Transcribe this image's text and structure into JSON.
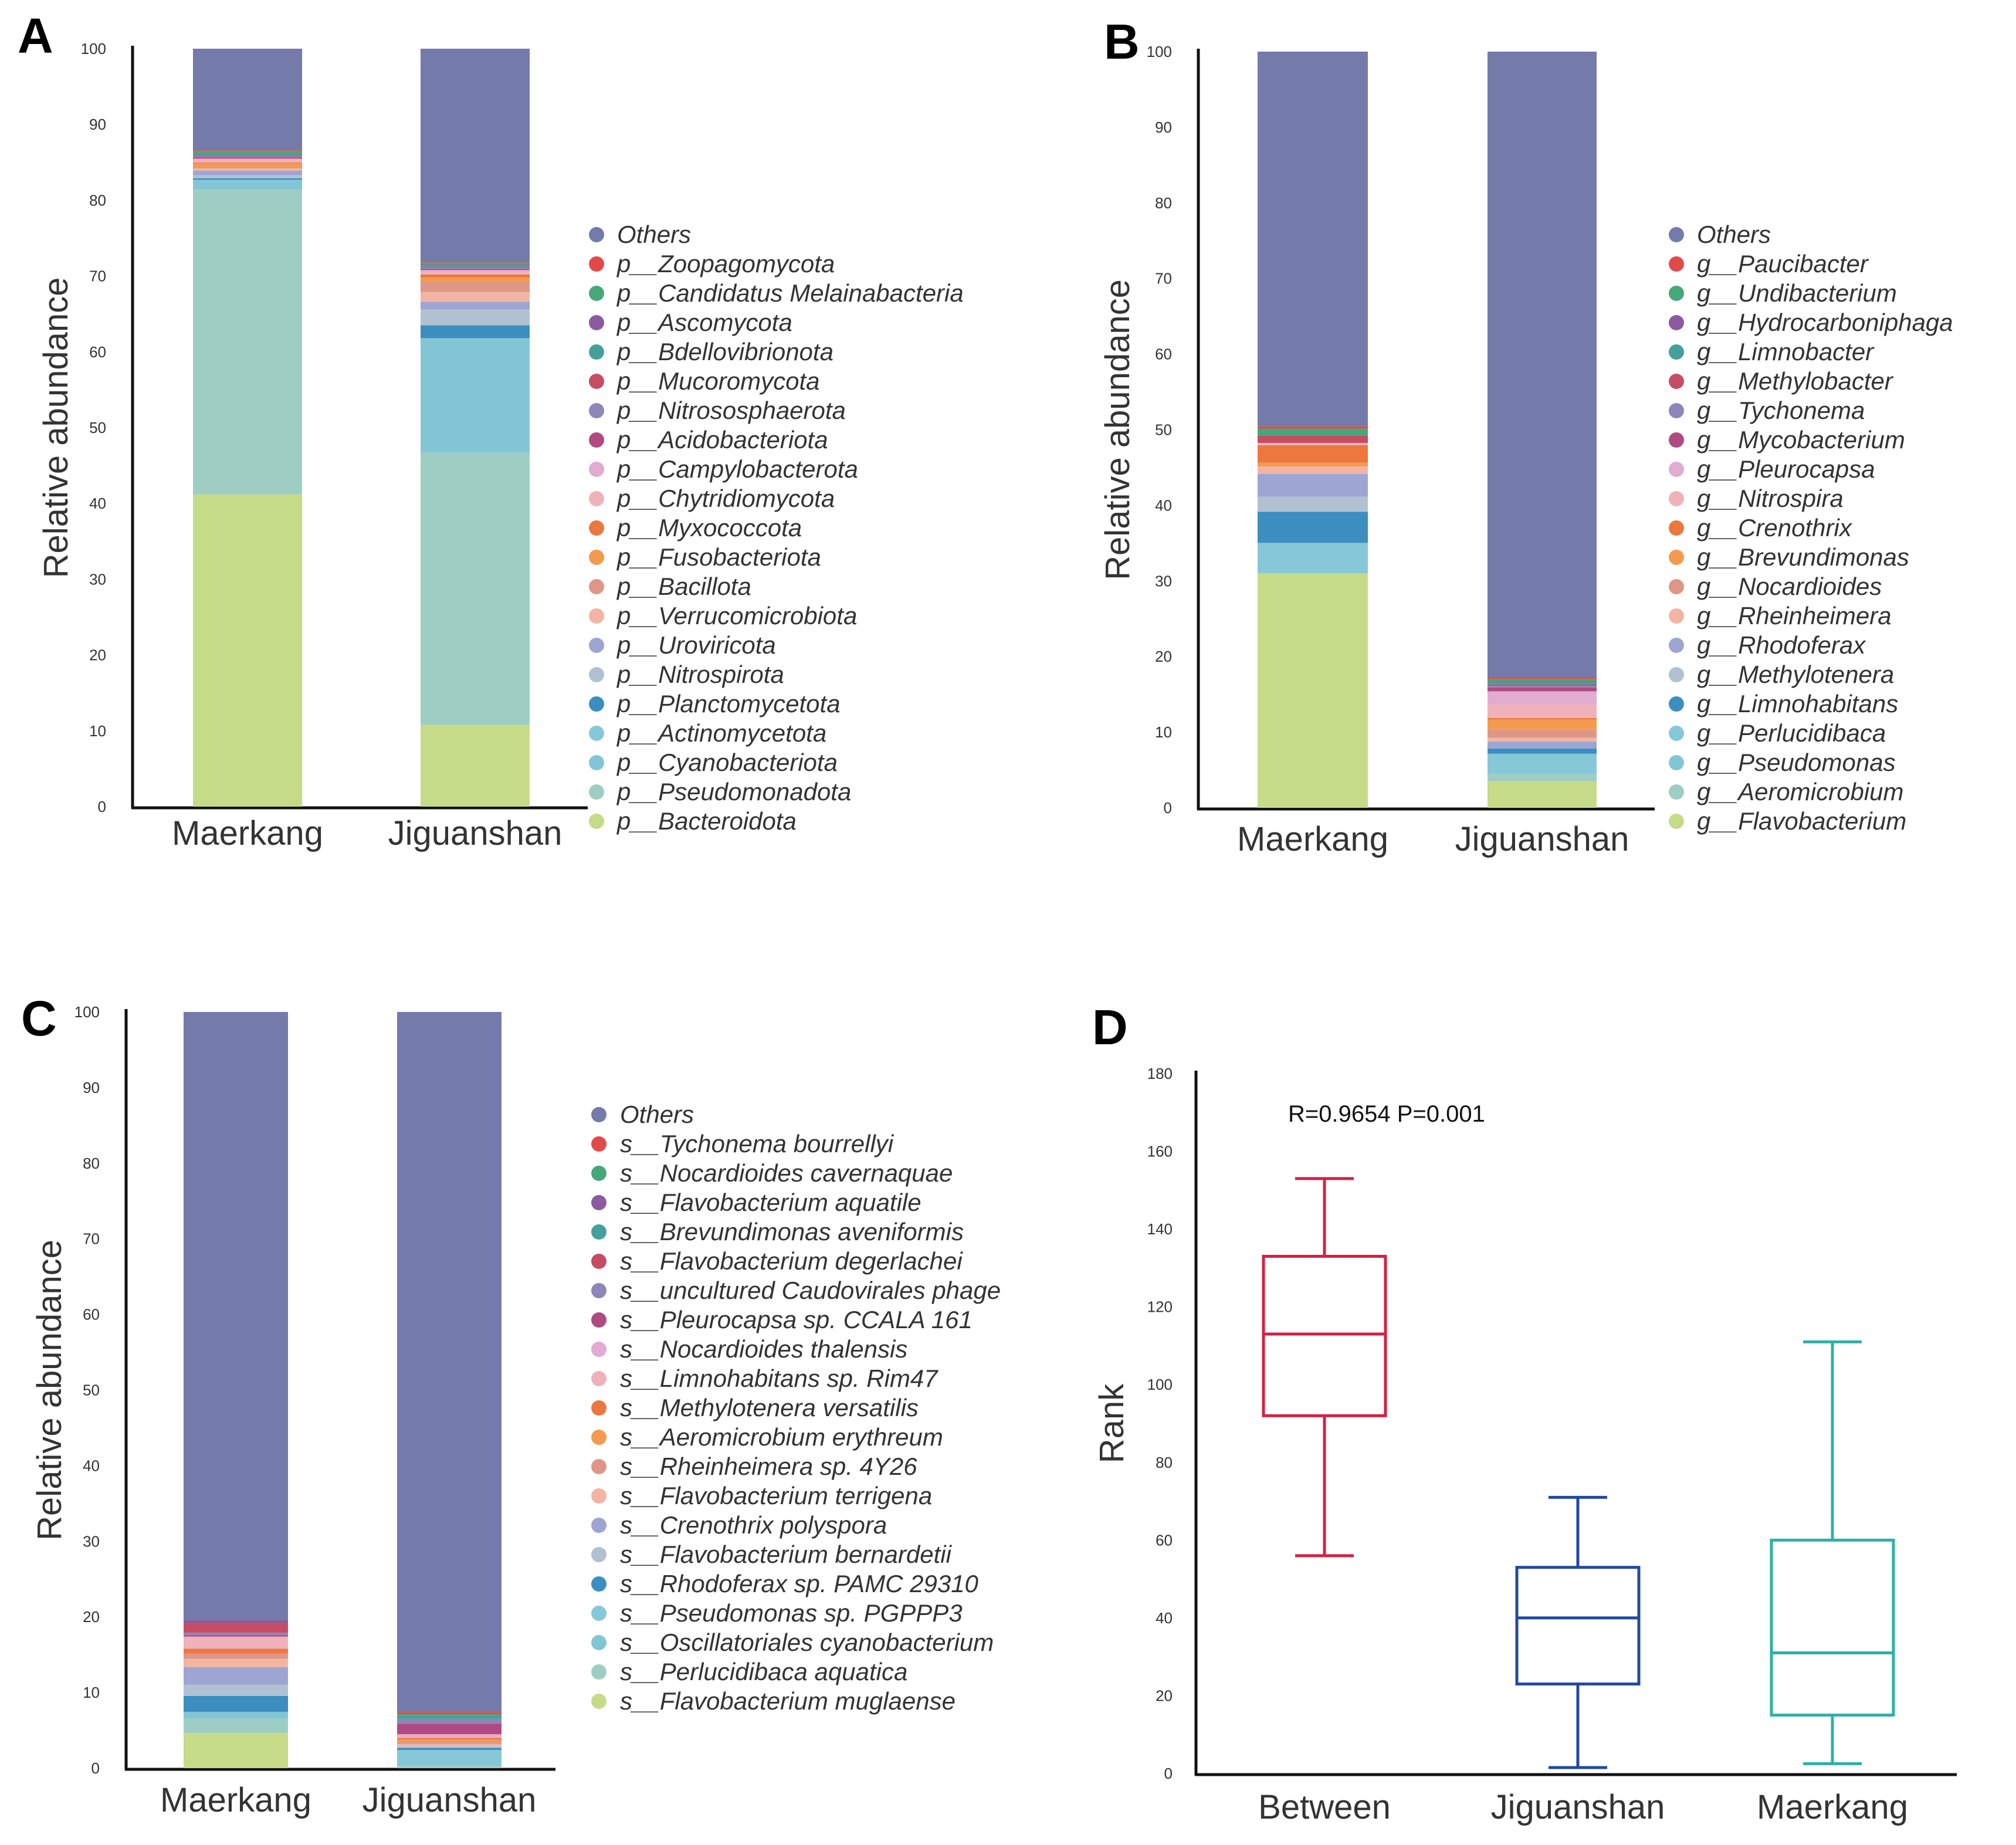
{
  "chart_data": [
    {
      "panel": "A",
      "type": "bar",
      "stacked": true,
      "ylabel": "Relative abundance",
      "ylim": [
        0,
        100
      ],
      "yticks": [
        "0",
        "10",
        "20",
        "30",
        "40",
        "50",
        "60",
        "70",
        "80",
        "90",
        "100"
      ],
      "categories": [
        "Maerkang",
        "Jiguanshan"
      ],
      "legend_position": "right",
      "series": [
        {
          "name": "Others",
          "color": "#747aa9",
          "values": [
            13.4,
            28.1
          ]
        },
        {
          "name": "p__Zoopagomycota",
          "color": "#e24a4a",
          "values": [
            0.1,
            0.1
          ]
        },
        {
          "name": "p__Candidatus Melainabacteria",
          "color": "#45a77a",
          "values": [
            0.3,
            0.2
          ]
        },
        {
          "name": "p__Ascomycota",
          "color": "#8c5b9f",
          "values": [
            0.1,
            0.1
          ]
        },
        {
          "name": "p__Bdellovibrionota",
          "color": "#45a09c",
          "values": [
            0.2,
            0.3
          ]
        },
        {
          "name": "p__Mucoromycota",
          "color": "#c54d63",
          "values": [
            0.1,
            0.1
          ]
        },
        {
          "name": "p__Nitrososphaerota",
          "color": "#8c86b9",
          "values": [
            0.1,
            0.1
          ]
        },
        {
          "name": "p__Acidobacteriota",
          "color": "#b04a82",
          "values": [
            0.2,
            0.2
          ]
        },
        {
          "name": "p__Campylobacterota",
          "color": "#e2abd0",
          "values": [
            0.2,
            0.3
          ]
        },
        {
          "name": "p__Chytridiomycota",
          "color": "#f0b2ba",
          "values": [
            0.3,
            0.3
          ]
        },
        {
          "name": "p__Myxococcota",
          "color": "#ec773f",
          "values": [
            0.1,
            0.4
          ]
        },
        {
          "name": "p__Fusobacteriota",
          "color": "#f39a4f",
          "values": [
            0.5,
            0.6
          ]
        },
        {
          "name": "p__Bacillota",
          "color": "#de9787",
          "values": [
            0.2,
            1.3
          ]
        },
        {
          "name": "p__Verrucomicrobiota",
          "color": "#f2b5a3",
          "values": [
            0.3,
            1.3
          ]
        },
        {
          "name": "p__Uroviricota",
          "color": "#9da5d3",
          "values": [
            0.6,
            1.0
          ]
        },
        {
          "name": "p__Nitrospirota",
          "color": "#b1c1d1",
          "values": [
            0.4,
            2.1
          ]
        },
        {
          "name": "p__Planctomycetota",
          "color": "#3c8ec0",
          "values": [
            0.2,
            1.7
          ]
        },
        {
          "name": "p__Actinomycetota",
          "color": "#86c8d8",
          "values": [
            0.1,
            0.1
          ]
        },
        {
          "name": "p__Cyanobacteriota",
          "color": "#82c6d6",
          "values": [
            1.2,
            15.0
          ]
        },
        {
          "name": "p__Pseudomonadota",
          "color": "#9ecec3",
          "values": [
            40.2,
            35.9
          ]
        },
        {
          "name": "p__Bacteroidota",
          "color": "#c6db88",
          "values": [
            41.2,
            10.8
          ]
        }
      ]
    },
    {
      "panel": "B",
      "type": "bar",
      "stacked": true,
      "ylabel": "Relative abundance",
      "ylim": [
        0,
        100
      ],
      "yticks": [
        "0",
        "10",
        "20",
        "30",
        "40",
        "50",
        "60",
        "70",
        "80",
        "90",
        "100"
      ],
      "categories": [
        "Maerkang",
        "Jiguanshan"
      ],
      "legend_position": "right",
      "series": [
        {
          "name": "Others",
          "color": "#747aa9",
          "values": [
            49.5,
            82.2
          ]
        },
        {
          "name": "g__Paucibacter",
          "color": "#e24a4a",
          "values": [
            0.3,
            0.2
          ]
        },
        {
          "name": "g__Undibacterium",
          "color": "#45a77a",
          "values": [
            0.9,
            0.3
          ]
        },
        {
          "name": "g__Hydrocarboniphaga",
          "color": "#8c5b9f",
          "values": [
            0.0,
            0.1
          ]
        },
        {
          "name": "g__Limnobacter",
          "color": "#45a09c",
          "values": [
            0.0,
            0.3
          ]
        },
        {
          "name": "g__Methylobacter",
          "color": "#c54d63",
          "values": [
            1.0,
            0.2
          ]
        },
        {
          "name": "g__Tychonema",
          "color": "#8c86b9",
          "values": [
            0.0,
            0.2
          ]
        },
        {
          "name": "g__Mycobacterium",
          "color": "#b04a82",
          "values": [
            0.0,
            0.5
          ]
        },
        {
          "name": "g__Pleurocapsa",
          "color": "#e2abd0",
          "values": [
            0.0,
            1.7
          ]
        },
        {
          "name": "g__Nitrospira",
          "color": "#f0b2ba",
          "values": [
            0.3,
            1.8
          ]
        },
        {
          "name": "g__Crenothrix",
          "color": "#ec773f",
          "values": [
            2.3,
            0.2
          ]
        },
        {
          "name": "g__Brevundimonas",
          "color": "#f39a4f",
          "values": [
            0.5,
            1.3
          ]
        },
        {
          "name": "g__Nocardioides",
          "color": "#de9787",
          "values": [
            0.0,
            1.1
          ]
        },
        {
          "name": "g__Rheinheimera",
          "color": "#f2b5a3",
          "values": [
            1.0,
            0.5
          ]
        },
        {
          "name": "g__Rhodoferax",
          "color": "#9da5d3",
          "values": [
            3.0,
            0.9
          ]
        },
        {
          "name": "g__Methylotenera",
          "color": "#b1c1d1",
          "values": [
            2.0,
            0.0
          ]
        },
        {
          "name": "g__Limnohabitans",
          "color": "#3c8ec0",
          "values": [
            4.1,
            0.7
          ]
        },
        {
          "name": "g__Perlucidibaca",
          "color": "#86c8d8",
          "values": [
            4.0,
            2.7
          ]
        },
        {
          "name": "g__Pseudomonas",
          "color": "#82c6d6",
          "values": [
            0.0,
            0.0
          ]
        },
        {
          "name": "g__Aeromicrobium",
          "color": "#9ecec3",
          "values": [
            0.0,
            0.9
          ]
        },
        {
          "name": "g__Flavobacterium",
          "color": "#c6db88",
          "values": [
            31.0,
            3.5
          ]
        }
      ]
    },
    {
      "panel": "C",
      "type": "bar",
      "stacked": true,
      "ylabel": "Relative abundance",
      "ylim": [
        0,
        100
      ],
      "yticks": [
        "0",
        "10",
        "20",
        "30",
        "40",
        "50",
        "60",
        "70",
        "80",
        "90",
        "100"
      ],
      "categories": [
        "Maerkang",
        "Jiguanshan"
      ],
      "legend_position": "right",
      "series": [
        {
          "name": "Others",
          "color": "#747aa9",
          "values": [
            80.4,
            92.8
          ]
        },
        {
          "name": "s__Tychonema bourrellyi",
          "color": "#e24a4a",
          "values": [
            0.0,
            0.3
          ]
        },
        {
          "name": "s__Nocardioides cavernaquae",
          "color": "#45a77a",
          "values": [
            0.0,
            0.2
          ]
        },
        {
          "name": "s__Flavobacterium aquatile",
          "color": "#8c5b9f",
          "values": [
            0.4,
            0.0
          ]
        },
        {
          "name": "s__Brevundimonas aveniformis",
          "color": "#45a09c",
          "values": [
            0.0,
            0.4
          ]
        },
        {
          "name": "s__Flavobacterium degerlachei",
          "color": "#c54d63",
          "values": [
            1.3,
            0.0
          ]
        },
        {
          "name": "s__uncultured Caudovirales phage",
          "color": "#8c86b9",
          "values": [
            0.3,
            0.65
          ]
        },
        {
          "name": "s__Pleurocapsa sp. CCALA 161",
          "color": "#b04a82",
          "values": [
            0.2,
            1.4
          ]
        },
        {
          "name": "s__Nocardioides thalensis",
          "color": "#e2abd0",
          "values": [
            0.1,
            0.3
          ]
        },
        {
          "name": "s__Limnohabitans sp. Rim47",
          "color": "#f0b2ba",
          "values": [
            1.5,
            0.2
          ]
        },
        {
          "name": "s__Methylotenera versatilis",
          "color": "#ec773f",
          "values": [
            0.65,
            0.2
          ]
        },
        {
          "name": "s__Aeromicrobium erythreum",
          "color": "#f39a4f",
          "values": [
            0.0,
            0.3
          ]
        },
        {
          "name": "s__Rheinheimera sp. 4Y26",
          "color": "#de9787",
          "values": [
            0.7,
            0.3
          ]
        },
        {
          "name": "s__Flavobacterium terrigena",
          "color": "#f2b5a3",
          "values": [
            1.1,
            0.3
          ]
        },
        {
          "name": "s__Crenothrix polyspora",
          "color": "#9da5d3",
          "values": [
            2.3,
            0.0
          ]
        },
        {
          "name": "s__Flavobacterium bernardetii",
          "color": "#b1c1d1",
          "values": [
            1.5,
            0.2
          ]
        },
        {
          "name": "s__Rhodoferax sp. PAMC 29310",
          "color": "#3c8ec0",
          "values": [
            2.1,
            0.3
          ]
        },
        {
          "name": "s__Pseudomonas sp. PGPPP3",
          "color": "#86c8d8",
          "values": [
            0.0,
            2.1
          ]
        },
        {
          "name": "s__Oscillatoriales cyanobacterium",
          "color": "#82c6d6",
          "values": [
            0.9,
            0.0
          ]
        },
        {
          "name": "s__Perlucidibaca aquatica",
          "color": "#9ecec3",
          "values": [
            1.9,
            0.3
          ]
        },
        {
          "name": "s__Flavobacterium muglaense",
          "color": "#c6db88",
          "values": [
            4.65,
            0.0
          ]
        }
      ]
    },
    {
      "panel": "D",
      "type": "box",
      "ylabel": "Rank",
      "ylim": [
        0,
        180
      ],
      "yticks": [
        "0",
        "20",
        "40",
        "60",
        "80",
        "100",
        "120",
        "140",
        "160",
        "180"
      ],
      "annotation": "R=0.9654  P=0.001",
      "categories": [
        "Between",
        "Jiguanshan",
        "Maerkang"
      ],
      "boxes": [
        {
          "name": "Between",
          "color": "#d42045",
          "min": 56,
          "q1": 92,
          "median": 113,
          "q3": 133,
          "max": 153
        },
        {
          "name": "Jiguanshan",
          "color": "#2249a0",
          "min": 1.5,
          "q1": 23,
          "median": 40,
          "q3": 53,
          "max": 71
        },
        {
          "name": "Maerkang",
          "color": "#2fb0a6",
          "min": 2.5,
          "q1": 15,
          "median": 31,
          "q3": 60,
          "max": 111
        }
      ]
    }
  ]
}
